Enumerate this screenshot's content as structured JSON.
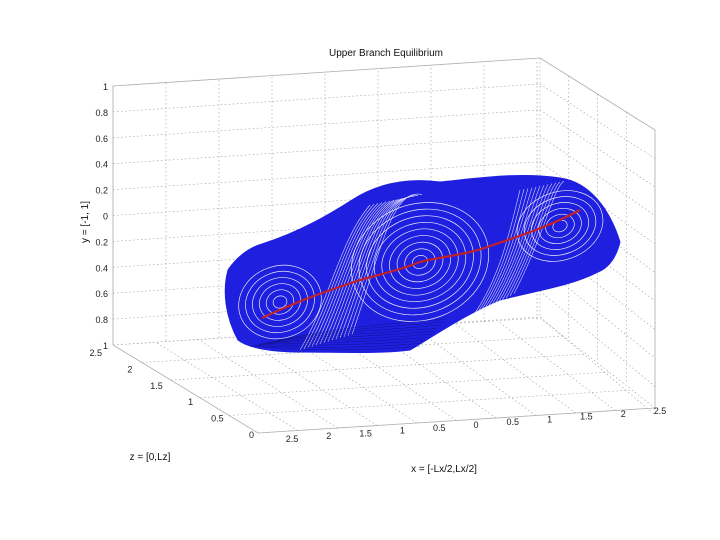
{
  "chart_data": {
    "type": "surface3d",
    "title": "Upper Branch Equilibrium",
    "xlabel": "x = [-Lx/2,Lx/2]",
    "ylabel": "y = [-1, 1]",
    "zlabel": "z = [0,Lz]",
    "x_ticks": [
      "2.5",
      "2",
      "1.5",
      "1",
      "0.5",
      "0",
      "0.5",
      "1",
      "1.5",
      "2",
      "2.5"
    ],
    "y_ticks": [
      "1",
      "0.8",
      "0.6",
      "0.4",
      "0.2",
      "0",
      "0.2",
      "0.4",
      "0.6",
      "0.8",
      "1"
    ],
    "z_ticks": [
      "2.5",
      "2",
      "1.5",
      "1",
      "0.5",
      "0"
    ],
    "grid": true,
    "colors": {
      "surface": "#1f1fe0",
      "streak": "#c0202a",
      "grid": "#9a9a9a",
      "box": "#b0b0b0"
    }
  }
}
